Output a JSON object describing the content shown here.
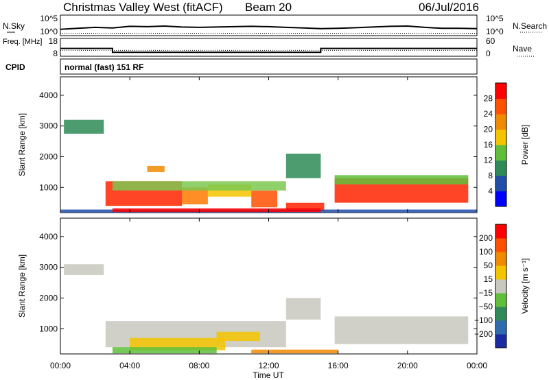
{
  "header": {
    "station": "Christmas Valley West (fitACF)",
    "beam": "Beam 20",
    "date": "06/Jul/2016"
  },
  "nsky_panel": {
    "left_label": "N.Sky",
    "left_ticks": [
      "10^5",
      "10^0"
    ],
    "right_label": "N.Search",
    "right_ticks": [
      "10^5",
      "10^0"
    ]
  },
  "freq_panel": {
    "left_label": "Freq. [MHz]",
    "left_ticks": [
      "18",
      "8"
    ],
    "right_label": "Nave",
    "right_ticks": [
      "60",
      "0"
    ],
    "cpid_label": "CPID",
    "cpid_text": "normal (fast) 151 RF"
  },
  "chart_data": [
    {
      "type": "line",
      "name": "sky-noise-search-noise",
      "x_unit": "hours UT",
      "xlim": [
        0,
        24
      ],
      "yscale": "log",
      "series": [
        {
          "style": "solid-dots",
          "x": [
            0,
            1,
            2,
            3,
            4,
            5,
            6,
            7,
            8,
            9,
            10,
            11,
            12,
            13,
            14,
            15,
            16,
            17,
            18,
            19,
            20,
            21,
            22,
            23,
            24
          ],
          "values_log10": [
            1.3,
            1.6,
            1.9,
            1.7,
            2.2,
            2.1,
            2.3,
            2.0,
            1.9,
            2.0,
            2.1,
            2.2,
            2.1,
            1.9,
            1.7,
            1.5,
            1.6,
            1.8,
            2.0,
            2.2,
            2.3,
            1.9,
            1.6,
            1.6,
            1.5
          ]
        },
        {
          "style": "dotted",
          "x": [
            0,
            24
          ],
          "values_log10": [
            0.1,
            0.1
          ]
        }
      ]
    },
    {
      "type": "line",
      "name": "frequency-nave",
      "x_unit": "hours UT",
      "xlim": [
        0,
        24
      ],
      "ylim": [
        8,
        18
      ],
      "series": [
        {
          "style": "solid",
          "x": [
            0,
            3,
            3,
            15,
            15,
            24
          ],
          "values": [
            12.4,
            12.4,
            10.2,
            10.2,
            12.4,
            12.4
          ]
        },
        {
          "style": "dotted",
          "x": [
            0,
            24
          ],
          "values": [
            11.3,
            11.3
          ]
        }
      ]
    },
    {
      "type": "heatmap",
      "name": "power",
      "xlabel": "Time UT",
      "ylabel": "Slant Range [km]",
      "x_unit": "hours UT",
      "xlim": [
        0,
        24
      ],
      "ylim": [
        180,
        4600
      ],
      "xticks": [
        "00:00",
        "04:00",
        "08:00",
        "12:00",
        "16:00",
        "20:00",
        "00:00"
      ],
      "xtick_values": [
        0,
        4,
        8,
        12,
        16,
        20,
        24
      ],
      "yticks": [
        "1000",
        "2000",
        "3000",
        "4000"
      ],
      "ytick_values": [
        1000,
        2000,
        3000,
        4000
      ],
      "colorbar": {
        "label": "Power [dB]",
        "ticks": [
          "4",
          "8",
          "12",
          "16",
          "20",
          "24",
          "28"
        ],
        "colors": [
          "#0000ff",
          "#1e4ea8",
          "#2e8b57",
          "#5fbf3a",
          "#f5c400",
          "#f08a00",
          "#ff5000",
          "#ff0000"
        ]
      },
      "blobs": [
        {
          "t0": 2.6,
          "t1": 7.0,
          "r0": 400,
          "r1": 1200,
          "color": "#ff2400"
        },
        {
          "t0": 7.0,
          "t1": 8.5,
          "r0": 450,
          "r1": 1000,
          "color": "#ff7a00"
        },
        {
          "t0": 8.5,
          "t1": 11.0,
          "r0": 700,
          "r1": 1100,
          "color": "#f5c400"
        },
        {
          "t0": 11.0,
          "t1": 12.5,
          "r0": 350,
          "r1": 900,
          "color": "#ff5000"
        },
        {
          "t0": 3.0,
          "t1": 13.0,
          "r0": 900,
          "r1": 1200,
          "color": "#7cc850"
        },
        {
          "t0": 13.0,
          "t1": 15.2,
          "r0": 250,
          "r1": 500,
          "color": "#ff2000"
        },
        {
          "t0": 15.8,
          "t1": 23.5,
          "r0": 500,
          "r1": 1300,
          "color": "#ff2400"
        },
        {
          "t0": 15.8,
          "t1": 23.5,
          "r0": 1100,
          "r1": 1400,
          "color": "#5fbf3a"
        },
        {
          "t0": 0.2,
          "t1": 2.5,
          "r0": 2750,
          "r1": 3200,
          "color": "#2e8b57"
        },
        {
          "t0": 5.0,
          "t1": 6.0,
          "r0": 1500,
          "r1": 1700,
          "color": "#f08a00"
        },
        {
          "t0": 13.0,
          "t1": 15.0,
          "r0": 1300,
          "r1": 2100,
          "color": "#2e8b57"
        },
        {
          "t0": 0.0,
          "t1": 24.0,
          "r0": 180,
          "r1": 280,
          "color": "#1e4ea8"
        },
        {
          "t0": 3.0,
          "t1": 15.0,
          "r0": 200,
          "r1": 320,
          "color": "#ff0000"
        }
      ]
    },
    {
      "type": "heatmap",
      "name": "velocity",
      "xlabel": "Time UT",
      "ylabel": "Slant Range [km]",
      "x_unit": "hours UT",
      "xlim": [
        0,
        24
      ],
      "ylim": [
        180,
        4600
      ],
      "xticks": [
        "00:00",
        "04:00",
        "08:00",
        "12:00",
        "16:00",
        "20:00",
        "00:00"
      ],
      "xtick_values": [
        0,
        4,
        8,
        12,
        16,
        20,
        24
      ],
      "yticks": [
        "1000",
        "2000",
        "3000",
        "4000"
      ],
      "ytick_values": [
        1000,
        2000,
        3000,
        4000
      ],
      "colorbar": {
        "label": "Velocity [m s⁻¹]",
        "ticks": [
          "200",
          "100",
          "50",
          "15",
          "−15",
          "−50",
          "−100",
          "−200"
        ],
        "colors": [
          "#1a2aa0",
          "#2e6bb0",
          "#2e8b57",
          "#5fbf3a",
          "#c8c8c0",
          "#f5c400",
          "#f08a00",
          "#ff5000",
          "#ff0000"
        ]
      },
      "blobs": [
        {
          "t0": 2.6,
          "t1": 13.0,
          "r0": 400,
          "r1": 1250,
          "color": "#c8c8c0"
        },
        {
          "t0": 15.8,
          "t1": 23.5,
          "r0": 500,
          "r1": 1400,
          "color": "#c8c8c0"
        },
        {
          "t0": 4.0,
          "t1": 9.5,
          "r0": 300,
          "r1": 700,
          "color": "#f5c400"
        },
        {
          "t0": 9.0,
          "t1": 11.5,
          "r0": 600,
          "r1": 900,
          "color": "#f5c400"
        },
        {
          "t0": 0.2,
          "t1": 2.5,
          "r0": 2750,
          "r1": 3100,
          "color": "#c8c8c0"
        },
        {
          "t0": 11.0,
          "t1": 16.0,
          "r0": 200,
          "r1": 320,
          "color": "#f08a00"
        },
        {
          "t0": 3.0,
          "t1": 9.0,
          "r0": 200,
          "r1": 400,
          "color": "#5fbf3a"
        },
        {
          "t0": 13.0,
          "t1": 15.0,
          "r0": 1300,
          "r1": 2000,
          "color": "#c8c8c0"
        }
      ]
    }
  ]
}
